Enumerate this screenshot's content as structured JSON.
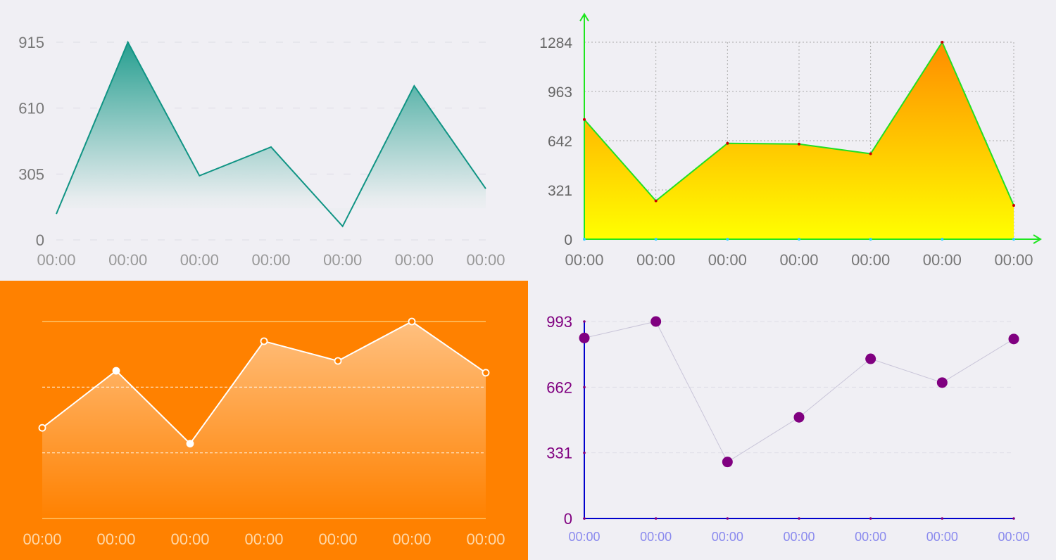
{
  "chart_data": [
    {
      "type": "area",
      "title": "",
      "x": [
        "00:00",
        "00:00",
        "00:00",
        "00:00",
        "00:00",
        "00:00",
        "00:00"
      ],
      "values": [
        120,
        915,
        297,
        430,
        63,
        713,
        237
      ],
      "yticks": [
        "0",
        "305",
        "610",
        "915"
      ],
      "ylim": [
        0,
        915
      ],
      "grid": "horizontal-dashed",
      "line_color": "#109484",
      "fill_color": "#1a9a8a"
    },
    {
      "type": "area",
      "title": "",
      "x": [
        "00:00",
        "00:00",
        "00:00",
        "00:00",
        "00:00",
        "00:00",
        "00:00"
      ],
      "values": [
        780,
        250,
        625,
        620,
        557,
        1284,
        220
      ],
      "yticks": [
        "0",
        "321",
        "642",
        "963",
        "1284"
      ],
      "ylim": [
        0,
        1284
      ],
      "grid": "dotted",
      "line_color": "#22e022",
      "axis_color": "#1fe61f",
      "point_color": "#cc0000",
      "fill_top": "#ff8c00",
      "fill_bottom": "#ffff00"
    },
    {
      "type": "area",
      "title": "",
      "x": [
        "00:00",
        "00:00",
        "00:00",
        "00:00",
        "00:00",
        "00:00",
        "00:00"
      ],
      "values": [
        460,
        750,
        380,
        900,
        800,
        1000,
        740
      ],
      "ylim": [
        0,
        1000
      ],
      "background": "#ff8100",
      "line_color": "#ffffff",
      "grid_color": "#ffd480"
    },
    {
      "type": "scatter",
      "title": "",
      "x": [
        "00:00",
        "00:00",
        "00:00",
        "00:00",
        "00:00",
        "00:00",
        "00:00"
      ],
      "values": [
        910,
        993,
        285,
        510,
        805,
        685,
        905
      ],
      "yticks": [
        "0",
        "331",
        "662",
        "993"
      ],
      "ylim": [
        0,
        993
      ],
      "point_color": "#800080",
      "axis_color": "#0000cc",
      "tick_label_color": "#800080",
      "x_label_color": "#8a8aee"
    }
  ]
}
